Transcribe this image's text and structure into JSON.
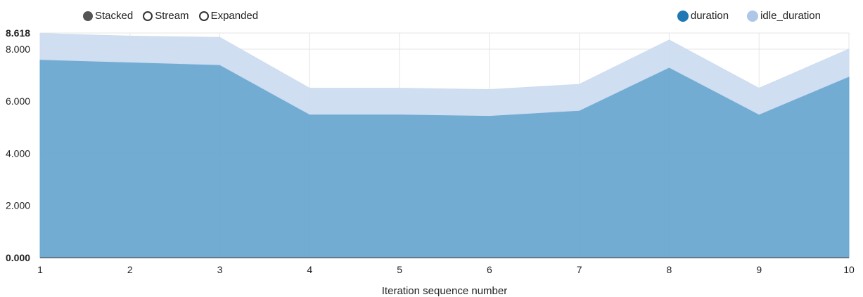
{
  "controls": [
    {
      "label": "Stacked",
      "selected": true
    },
    {
      "label": "Stream",
      "selected": false
    },
    {
      "label": "Expanded",
      "selected": false
    }
  ],
  "legend": [
    {
      "label": "duration",
      "color": "#1f77b4"
    },
    {
      "label": "idle_duration",
      "color": "#aec7e8"
    }
  ],
  "chart_data": {
    "type": "area",
    "stacked": true,
    "xlabel": "Iteration sequence number",
    "ylabel": "",
    "x": [
      1,
      2,
      3,
      4,
      5,
      6,
      7,
      8,
      9,
      10
    ],
    "ylim": [
      0,
      8.618
    ],
    "yticks": [
      "0.000",
      "2.000",
      "4.000",
      "6.000",
      "8.000",
      "8.618"
    ],
    "series": [
      {
        "name": "duration",
        "color": "#6aa8d1",
        "values": [
          7.6,
          7.5,
          7.4,
          5.5,
          5.5,
          5.45,
          5.65,
          7.3,
          5.5,
          6.95
        ]
      },
      {
        "name": "idle_duration",
        "color": "#cddcf0",
        "values": [
          1.0,
          1.0,
          1.05,
          1.0,
          1.0,
          1.0,
          1.0,
          1.05,
          1.0,
          1.05
        ]
      }
    ],
    "grid": true
  }
}
